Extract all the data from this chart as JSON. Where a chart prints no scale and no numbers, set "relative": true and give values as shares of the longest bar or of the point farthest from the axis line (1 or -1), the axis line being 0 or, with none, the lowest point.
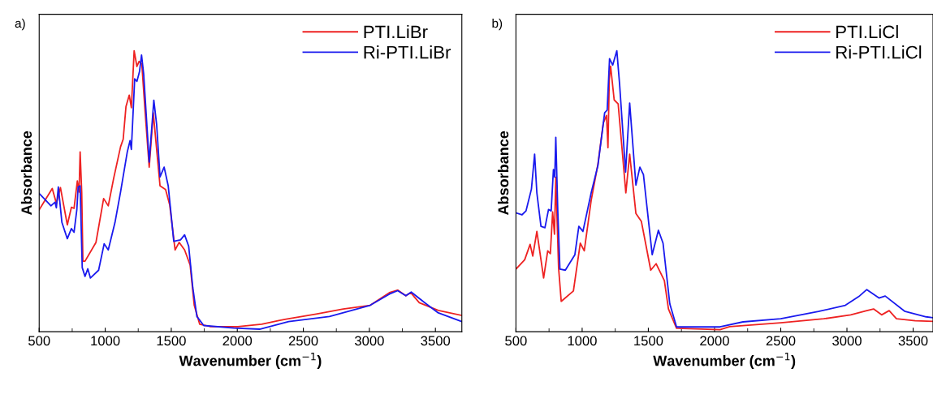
{
  "chart_data": [
    {
      "type": "line",
      "relative": true,
      "xlabel": "Wavenumber (cm$^{−1}$)",
      "ylabel": "Absorbance",
      "annotations": [
        "a)"
      ],
      "xlim": [
        500,
        3700
      ],
      "xticks": [
        500,
        1000,
        1500,
        2000,
        2500,
        3000,
        3500
      ],
      "tick_labels": "x",
      "legend": "top right",
      "grid": false,
      "series": [
        {
          "name": "PTI.LiBr",
          "color": "#ee2222",
          "x": [
            500,
            599,
            630,
            661,
            713,
            744,
            764,
            789,
            802,
            810,
            822,
            831,
            847,
            930,
            988,
            1023,
            1064,
            1116,
            1136,
            1157,
            1182,
            1198,
            1219,
            1240,
            1256,
            1277,
            1302,
            1333,
            1364,
            1384,
            1415,
            1457,
            1488,
            1529,
            1560,
            1601,
            1643,
            1674,
            1715,
            1797,
            2004,
            2185,
            2314,
            2370,
            2597,
            2802,
            3006,
            3152,
            3214,
            3276,
            3313,
            3378,
            3522,
            3700
          ],
          "values": [
            0.434,
            0.51,
            0.457,
            0.513,
            0.38,
            0.443,
            0.439,
            0.537,
            0.497,
            0.64,
            0.497,
            0.251,
            0.251,
            0.318,
            0.474,
            0.448,
            0.546,
            0.658,
            0.685,
            0.801,
            0.842,
            0.797,
            1.0,
            0.944,
            0.962,
            0.953,
            0.783,
            0.586,
            0.779,
            0.676,
            0.519,
            0.506,
            0.452,
            0.291,
            0.318,
            0.291,
            0.237,
            0.094,
            0.027,
            0.018,
            0.018,
            0.027,
            0.04,
            0.045,
            0.063,
            0.081,
            0.094,
            0.139,
            0.148,
            0.128,
            0.139,
            0.103,
            0.076,
            0.058
          ]
        },
        {
          "name": "Ri-PTI.LiBr",
          "color": "#1a1aee",
          "x": [
            500,
            537,
            589,
            620,
            630,
            645,
            672,
            713,
            744,
            764,
            785,
            795,
            810,
            826,
            847,
            868,
            888,
            950,
            992,
            1023,
            1074,
            1116,
            1167,
            1188,
            1198,
            1223,
            1240,
            1260,
            1275,
            1291,
            1333,
            1368,
            1389,
            1415,
            1446,
            1477,
            1519,
            1570,
            1601,
            1632,
            1663,
            1694,
            1746,
            1973,
            2169,
            2314,
            2389,
            2698,
            3006,
            3152,
            3214,
            3276,
            3317,
            3420,
            3522,
            3700
          ],
          "values": [
            0.492,
            0.474,
            0.448,
            0.461,
            0.441,
            0.515,
            0.389,
            0.331,
            0.367,
            0.354,
            0.434,
            0.515,
            0.519,
            0.228,
            0.197,
            0.224,
            0.191,
            0.219,
            0.313,
            0.291,
            0.389,
            0.497,
            0.64,
            0.68,
            0.649,
            0.9,
            0.891,
            0.927,
            0.985,
            0.918,
            0.604,
            0.824,
            0.739,
            0.551,
            0.586,
            0.519,
            0.322,
            0.327,
            0.345,
            0.304,
            0.157,
            0.054,
            0.022,
            0.013,
            0.009,
            0.027,
            0.036,
            0.054,
            0.094,
            0.134,
            0.146,
            0.128,
            0.141,
            0.103,
            0.067,
            0.036
          ]
        }
      ]
    },
    {
      "type": "line",
      "relative": true,
      "xlabel": "Wavenumber (cm$^{−1}$)",
      "ylabel": "Absorbance",
      "annotations": [
        "b)"
      ],
      "xlim": [
        500,
        3650
      ],
      "xticks": [
        500,
        1000,
        1500,
        2000,
        2500,
        3000,
        3500
      ],
      "tick_labels": "x",
      "legend": "top right",
      "grid": false,
      "series": [
        {
          "name": "PTI.LiCl",
          "color": "#ee2222",
          "x": [
            500,
            566,
            607,
            627,
            658,
            709,
            740,
            760,
            777,
            791,
            801,
            822,
            842,
            934,
            986,
            1016,
            1068,
            1119,
            1160,
            1184,
            1195,
            1205,
            1215,
            1242,
            1272,
            1303,
            1330,
            1359,
            1406,
            1447,
            1477,
            1518,
            1559,
            1621,
            1652,
            1713,
            2041,
            2114,
            2500,
            2825,
            3028,
            3150,
            3201,
            3262,
            3319,
            3374,
            3516,
            3650
          ],
          "values": [
            0.223,
            0.256,
            0.311,
            0.269,
            0.357,
            0.191,
            0.288,
            0.278,
            0.426,
            0.347,
            0.55,
            0.228,
            0.108,
            0.145,
            0.315,
            0.288,
            0.467,
            0.596,
            0.743,
            0.77,
            0.655,
            0.899,
            0.945,
            0.825,
            0.811,
            0.642,
            0.494,
            0.632,
            0.421,
            0.393,
            0.32,
            0.219,
            0.242,
            0.182,
            0.081,
            0.012,
            0.007,
            0.018,
            0.032,
            0.046,
            0.06,
            0.075,
            0.081,
            0.06,
            0.075,
            0.046,
            0.039,
            0.037
          ]
        },
        {
          "name": "Ri-PTI.LiCl",
          "color": "#1a1aee",
          "x": [
            500,
            545,
            576,
            617,
            641,
            658,
            689,
            719,
            746,
            766,
            783,
            793,
            801,
            816,
            832,
            873,
            945,
            975,
            1006,
            1068,
            1119,
            1170,
            1189,
            1207,
            1231,
            1262,
            1283,
            1328,
            1359,
            1406,
            1436,
            1463,
            1529,
            1576,
            1611,
            1662,
            1713,
            2041,
            2215,
            2500,
            2785,
            2988,
            3089,
            3150,
            3242,
            3289,
            3435,
            3598,
            3650
          ],
          "values": [
            0.423,
            0.416,
            0.43,
            0.508,
            0.632,
            0.494,
            0.375,
            0.37,
            0.435,
            0.43,
            0.577,
            0.55,
            0.692,
            0.43,
            0.223,
            0.219,
            0.274,
            0.375,
            0.357,
            0.494,
            0.591,
            0.779,
            0.789,
            0.972,
            0.949,
            1.0,
            0.88,
            0.568,
            0.814,
            0.522,
            0.586,
            0.559,
            0.274,
            0.361,
            0.315,
            0.099,
            0.017,
            0.017,
            0.035,
            0.046,
            0.072,
            0.094,
            0.125,
            0.15,
            0.12,
            0.127,
            0.073,
            0.053,
            0.05
          ]
        }
      ]
    }
  ]
}
